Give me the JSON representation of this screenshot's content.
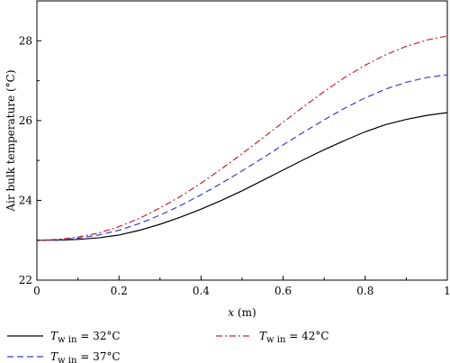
{
  "chart_data": {
    "type": "line",
    "xlabel_var": "x",
    "xlabel_unit": " (m)",
    "ylabel": "Air bulk temperature (°C)",
    "xlim": [
      0,
      1
    ],
    "ylim": [
      22,
      29
    ],
    "xticks": [
      0,
      0.2,
      0.4,
      0.6,
      0.8,
      1
    ],
    "xtick_labels": [
      "0",
      "0.2",
      "0.4",
      "0.6",
      "0.8",
      "1"
    ],
    "yticks": [
      22,
      24,
      26,
      28
    ],
    "ytick_labels": [
      "22",
      "24",
      "26",
      "28"
    ],
    "legend_placement": "bottom",
    "series": [
      {
        "name_var": "T",
        "name_sub": "w in",
        "name_value": " = 32°C",
        "color": "#000000",
        "dash": "solid",
        "x": [
          0,
          0.05,
          0.1,
          0.15,
          0.2,
          0.25,
          0.3,
          0.35,
          0.4,
          0.45,
          0.5,
          0.55,
          0.6,
          0.65,
          0.7,
          0.75,
          0.8,
          0.85,
          0.9,
          0.95,
          1.0
        ],
        "y": [
          23.0,
          23.0,
          23.02,
          23.06,
          23.13,
          23.25,
          23.4,
          23.58,
          23.78,
          24.0,
          24.24,
          24.5,
          24.76,
          25.02,
          25.27,
          25.5,
          25.72,
          25.9,
          26.03,
          26.13,
          26.2
        ]
      },
      {
        "name_var": "T",
        "name_sub": "w in",
        "name_value": " = 37°C",
        "color": "#3b3bd6",
        "dash": "dashed",
        "x": [
          0,
          0.05,
          0.1,
          0.15,
          0.2,
          0.25,
          0.3,
          0.35,
          0.4,
          0.45,
          0.5,
          0.55,
          0.6,
          0.65,
          0.7,
          0.75,
          0.8,
          0.85,
          0.9,
          0.95,
          1.0
        ],
        "y": [
          23.0,
          23.01,
          23.05,
          23.13,
          23.25,
          23.42,
          23.63,
          23.87,
          24.14,
          24.43,
          24.74,
          25.06,
          25.39,
          25.71,
          26.02,
          26.31,
          26.57,
          26.79,
          26.96,
          27.08,
          27.15
        ]
      },
      {
        "name_var": "T",
        "name_sub": "w in",
        "name_value": " = 42°C",
        "color": "#c0282d",
        "dash": "dashdot",
        "x": [
          0,
          0.05,
          0.1,
          0.15,
          0.2,
          0.25,
          0.3,
          0.35,
          0.4,
          0.45,
          0.5,
          0.55,
          0.6,
          0.65,
          0.7,
          0.75,
          0.8,
          0.85,
          0.9,
          0.95,
          1.0
        ],
        "y": [
          23.0,
          23.02,
          23.08,
          23.18,
          23.34,
          23.55,
          23.81,
          24.1,
          24.43,
          24.79,
          25.17,
          25.56,
          25.96,
          26.35,
          26.73,
          27.08,
          27.39,
          27.65,
          27.86,
          28.02,
          28.12
        ]
      }
    ]
  }
}
